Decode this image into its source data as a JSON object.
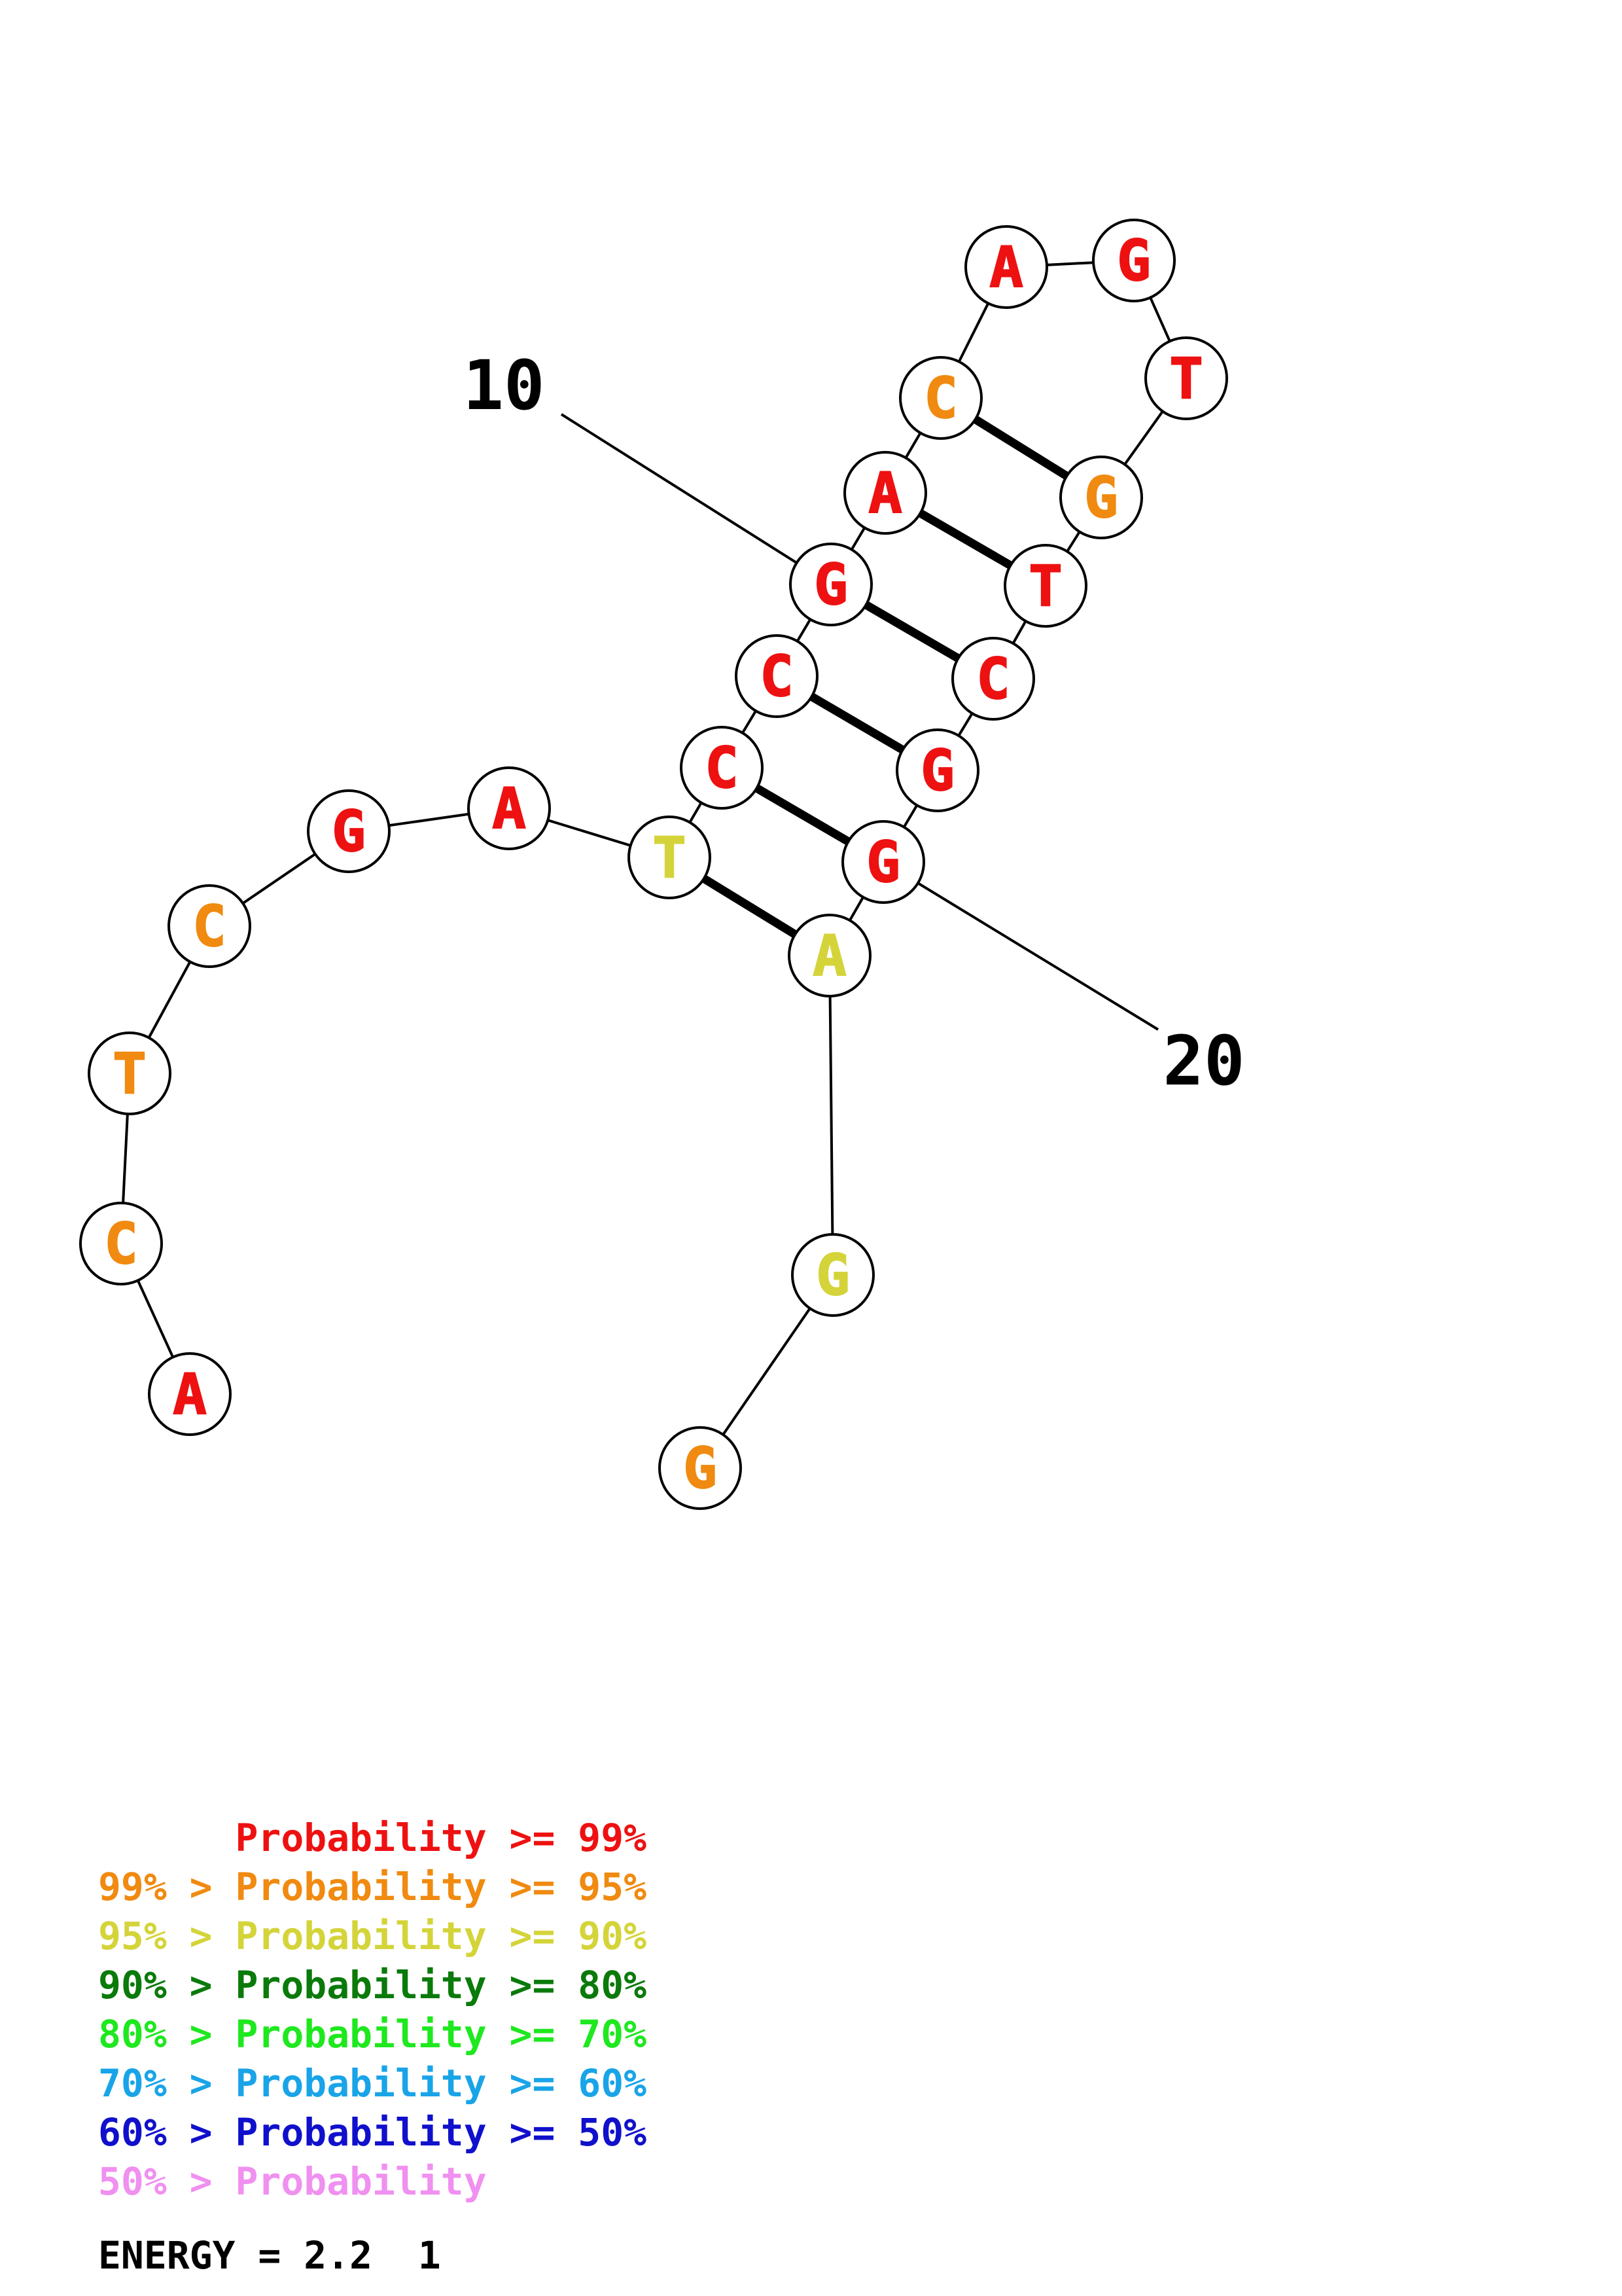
{
  "structure": {
    "sequence": [
      "A",
      "C",
      "T",
      "C",
      "G",
      "A",
      "T",
      "C",
      "C",
      "G",
      "A",
      "C",
      "A",
      "G",
      "T",
      "G",
      "T",
      "C",
      "G",
      "G",
      "A",
      "G",
      "G"
    ],
    "probability_tier": [
      0,
      1,
      1,
      1,
      0,
      0,
      2,
      0,
      0,
      0,
      0,
      1,
      0,
      0,
      0,
      1,
      0,
      0,
      0,
      0,
      2,
      2,
      1
    ],
    "pairs": [
      [
        7,
        21
      ],
      [
        8,
        20
      ],
      [
        9,
        19
      ],
      [
        10,
        18
      ],
      [
        11,
        17
      ],
      [
        12,
        16
      ]
    ],
    "index_labels": [
      {
        "text": "10",
        "nucleotide": 10
      },
      {
        "text": "20",
        "nucleotide": 20
      }
    ]
  },
  "legend": {
    "items": [
      {
        "text": "      Probability >= 99%",
        "color": "#ee1111"
      },
      {
        "text": "99% > Probability >= 95%",
        "color": "#f08a10"
      },
      {
        "text": "95% > Probability >= 90%",
        "color": "#d4d43a"
      },
      {
        "text": "90% > Probability >= 80%",
        "color": "#0a7a0a"
      },
      {
        "text": "80% > Probability >= 70%",
        "color": "#1ee81e"
      },
      {
        "text": "70% > Probability >= 60%",
        "color": "#19a4e8"
      },
      {
        "text": "60% > Probability >= 50%",
        "color": "#1010cc"
      },
      {
        "text": "50% > Probability",
        "color": "#f090f0"
      }
    ],
    "energy": "ENERGY = 2.2  1"
  }
}
